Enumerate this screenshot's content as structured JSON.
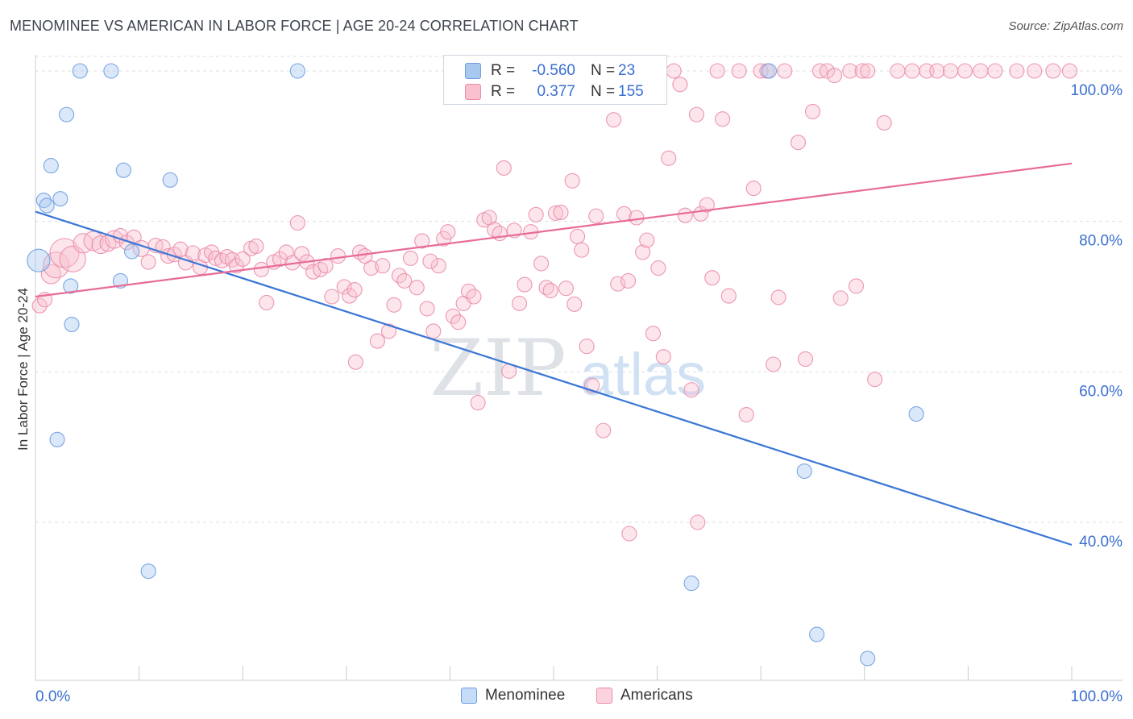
{
  "title": "MENOMINEE VS AMERICAN IN LABOR FORCE | AGE 20-24 CORRELATION CHART",
  "source": "Source: ZipAtlas.com",
  "watermark": {
    "zip": "ZIP",
    "atlas": "atlas"
  },
  "legend_stats": {
    "rows": [
      {
        "r_label": "R =",
        "r_value": "-0.560",
        "n_label": "N =",
        "n_value": "23",
        "color": "#a9c8f0",
        "stroke": "#6b9de0"
      },
      {
        "r_label": "R =",
        "r_value": "0.377",
        "n_label": "N =",
        "n_value": "155",
        "color": "#f9c0d0",
        "stroke": "#ea8cab"
      }
    ]
  },
  "legend_bottom": [
    {
      "label": "Menominee",
      "color": "#c5dbf7",
      "stroke": "#6b9de0"
    },
    {
      "label": "Americans",
      "color": "#fbd3df",
      "stroke": "#ea8cab"
    }
  ],
  "chart_data": {
    "type": "scatter",
    "title": "MENOMINEE VS AMERICAN IN LABOR FORCE | AGE 20-24 CORRELATION CHART",
    "ylabel": "In Labor Force | Age 20-24",
    "xlabel": "",
    "xlim": [
      0,
      100
    ],
    "ylim": [
      19,
      103
    ],
    "x_tick_labels": {
      "left": "0.0%",
      "right": "100.0%"
    },
    "y_ticks": [
      {
        "value": 100,
        "label": "100.0%"
      },
      {
        "value": 80,
        "label": "80.0%"
      },
      {
        "value": 60,
        "label": "60.0%"
      },
      {
        "value": 40,
        "label": "40.0%"
      }
    ],
    "grid": "horizontal dashed",
    "series": [
      {
        "name": "Menominee",
        "color": "#a9c8f0",
        "stroke": "#6b9de0",
        "trend": {
          "x": [
            0,
            100
          ],
          "y": [
            81.3,
            37.0
          ],
          "color": "#3a76d6"
        },
        "points": [
          [
            0.3,
            74.8,
            14
          ],
          [
            0.8,
            82.8,
            9
          ],
          [
            1.1,
            82.1,
            9
          ],
          [
            1.5,
            87.4,
            9
          ],
          [
            2.1,
            51.0,
            9
          ],
          [
            2.4,
            83.0,
            9
          ],
          [
            3.0,
            94.2,
            9
          ],
          [
            3.4,
            71.4,
            9
          ],
          [
            3.5,
            66.3,
            9
          ],
          [
            4.3,
            100.0,
            9
          ],
          [
            7.3,
            100.0,
            9
          ],
          [
            8.2,
            72.1,
            9
          ],
          [
            8.5,
            86.8,
            9
          ],
          [
            9.3,
            76.0,
            9
          ],
          [
            10.9,
            33.5,
            9
          ],
          [
            13.0,
            85.5,
            9
          ],
          [
            25.3,
            100.0,
            9
          ],
          [
            70.8,
            100.0,
            9
          ],
          [
            63.3,
            31.9,
            9
          ],
          [
            74.2,
            46.8,
            9
          ],
          [
            85.0,
            54.4,
            9
          ],
          [
            75.4,
            25.1,
            9
          ],
          [
            80.3,
            21.9,
            9
          ]
        ]
      },
      {
        "name": "Americans",
        "color": "#f9c0d0",
        "stroke": "#ea8cab",
        "trend": {
          "x": [
            0,
            100
          ],
          "y": [
            70.0,
            87.7
          ],
          "color": "#e86b98"
        },
        "points": [
          [
            0.4,
            68.8,
            9
          ],
          [
            0.9,
            69.6,
            9
          ],
          [
            1.5,
            73.0,
            12
          ],
          [
            2.0,
            74.2,
            16
          ],
          [
            2.8,
            75.8,
            18
          ],
          [
            3.6,
            75.0,
            16
          ],
          [
            4.6,
            77.1,
            12
          ],
          [
            5.6,
            77.4,
            12
          ],
          [
            6.3,
            76.9,
            11
          ],
          [
            7.0,
            77.1,
            10
          ],
          [
            7.6,
            77.6,
            11
          ],
          [
            8.2,
            78.1,
            9
          ],
          [
            8.8,
            77.2,
            9
          ],
          [
            9.5,
            77.9,
            9
          ],
          [
            10.2,
            76.4,
            10
          ],
          [
            10.9,
            74.6,
            9
          ],
          [
            11.6,
            76.8,
            9
          ],
          [
            12.3,
            76.6,
            9
          ],
          [
            12.8,
            75.4,
            9
          ],
          [
            13.4,
            75.6,
            9
          ],
          [
            14.0,
            76.3,
            9
          ],
          [
            14.5,
            74.5,
            9
          ],
          [
            15.2,
            75.8,
            9
          ],
          [
            15.9,
            73.9,
            9
          ],
          [
            16.4,
            75.5,
            9
          ],
          [
            17.0,
            75.9,
            9
          ],
          [
            17.4,
            75.1,
            9
          ],
          [
            18.0,
            74.8,
            9
          ],
          [
            18.5,
            75.3,
            9
          ],
          [
            19.0,
            74.9,
            9
          ],
          [
            19.4,
            74.1,
            9
          ],
          [
            20.0,
            75.0,
            9
          ],
          [
            20.8,
            76.4,
            9
          ],
          [
            21.3,
            76.7,
            9
          ],
          [
            21.8,
            73.6,
            9
          ],
          [
            22.3,
            69.2,
            9
          ],
          [
            23.0,
            74.6,
            9
          ],
          [
            23.6,
            75.0,
            9
          ],
          [
            24.2,
            75.9,
            9
          ],
          [
            24.8,
            74.5,
            9
          ],
          [
            25.3,
            79.8,
            9
          ],
          [
            25.7,
            75.7,
            9
          ],
          [
            26.2,
            74.6,
            9
          ],
          [
            26.8,
            73.3,
            9
          ],
          [
            27.5,
            73.6,
            9
          ],
          [
            28.0,
            74.1,
            9
          ],
          [
            28.6,
            70.0,
            9
          ],
          [
            29.2,
            75.4,
            9
          ],
          [
            29.8,
            71.3,
            9
          ],
          [
            30.3,
            70.1,
            9
          ],
          [
            30.8,
            70.9,
            9
          ],
          [
            31.3,
            75.9,
            9
          ],
          [
            31.8,
            75.4,
            9
          ],
          [
            32.4,
            73.8,
            9
          ],
          [
            33.0,
            64.1,
            9
          ],
          [
            33.5,
            74.1,
            9
          ],
          [
            34.1,
            65.4,
            9
          ],
          [
            34.6,
            68.9,
            9
          ],
          [
            35.1,
            72.8,
            9
          ],
          [
            35.6,
            72.1,
            9
          ],
          [
            36.2,
            75.1,
            9
          ],
          [
            36.8,
            71.2,
            9
          ],
          [
            37.3,
            77.4,
            9
          ],
          [
            37.8,
            68.4,
            9
          ],
          [
            38.4,
            65.4,
            9
          ],
          [
            38.9,
            74.1,
            9
          ],
          [
            39.4,
            77.7,
            9
          ],
          [
            39.8,
            78.6,
            9
          ],
          [
            40.3,
            67.4,
            9
          ],
          [
            40.8,
            66.6,
            9
          ],
          [
            41.3,
            69.1,
            9
          ],
          [
            41.8,
            70.7,
            9
          ],
          [
            42.3,
            70.0,
            9
          ],
          [
            42.7,
            55.9,
            9
          ],
          [
            43.3,
            80.2,
            9
          ],
          [
            43.8,
            80.5,
            9
          ],
          [
            44.3,
            78.9,
            9
          ],
          [
            44.8,
            78.4,
            9
          ],
          [
            45.2,
            87.1,
            9
          ],
          [
            45.7,
            60.1,
            9
          ],
          [
            46.2,
            78.8,
            9
          ],
          [
            46.7,
            69.1,
            9
          ],
          [
            47.2,
            71.6,
            9
          ],
          [
            47.8,
            78.6,
            9
          ],
          [
            48.3,
            80.9,
            9
          ],
          [
            48.8,
            74.4,
            9
          ],
          [
            49.3,
            71.2,
            9
          ],
          [
            49.7,
            70.8,
            9
          ],
          [
            50.2,
            81.1,
            9
          ],
          [
            50.7,
            81.2,
            9
          ],
          [
            51.2,
            71.1,
            9
          ],
          [
            51.8,
            85.4,
            9
          ],
          [
            52.3,
            78.0,
            9
          ],
          [
            52.7,
            76.2,
            9
          ],
          [
            53.2,
            63.4,
            9
          ],
          [
            53.7,
            58.2,
            9
          ],
          [
            54.1,
            80.7,
            9
          ],
          [
            54.8,
            52.2,
            9
          ],
          [
            55.3,
            100.0,
            9
          ],
          [
            55.8,
            93.5,
            9
          ],
          [
            56.2,
            71.7,
            9
          ],
          [
            56.8,
            81.0,
            9
          ],
          [
            57.3,
            38.5,
            9
          ],
          [
            58.0,
            80.5,
            9
          ],
          [
            58.6,
            75.9,
            9
          ],
          [
            59.0,
            77.5,
            9
          ],
          [
            59.6,
            65.1,
            9
          ],
          [
            60.1,
            73.8,
            9
          ],
          [
            60.6,
            62.0,
            9
          ],
          [
            61.1,
            88.4,
            9
          ],
          [
            61.6,
            100.0,
            9
          ],
          [
            62.2,
            98.2,
            9
          ],
          [
            62.7,
            80.8,
            9
          ],
          [
            63.3,
            57.6,
            9
          ],
          [
            63.8,
            94.2,
            9
          ],
          [
            64.2,
            81.0,
            9
          ],
          [
            64.8,
            82.2,
            9
          ],
          [
            65.3,
            72.5,
            9
          ],
          [
            65.8,
            100.0,
            9
          ],
          [
            66.3,
            93.6,
            9
          ],
          [
            66.9,
            70.1,
            9
          ],
          [
            67.9,
            100.0,
            9
          ],
          [
            68.6,
            54.3,
            9
          ],
          [
            69.3,
            84.4,
            9
          ],
          [
            70.0,
            100.0,
            9
          ],
          [
            70.6,
            100.0,
            9
          ],
          [
            71.2,
            61.0,
            9
          ],
          [
            71.7,
            69.9,
            9
          ],
          [
            72.3,
            100.0,
            9
          ],
          [
            73.6,
            90.5,
            9
          ],
          [
            74.3,
            61.7,
            9
          ],
          [
            75.0,
            94.6,
            9
          ],
          [
            75.7,
            100.0,
            9
          ],
          [
            76.4,
            100.0,
            9
          ],
          [
            77.1,
            99.4,
            9
          ],
          [
            77.7,
            69.8,
            9
          ],
          [
            78.6,
            100.0,
            9
          ],
          [
            79.2,
            71.4,
            9
          ],
          [
            79.8,
            100.0,
            9
          ],
          [
            80.3,
            100.0,
            9
          ],
          [
            81.0,
            59.0,
            9
          ],
          [
            81.9,
            93.1,
            9
          ],
          [
            83.2,
            100.0,
            9
          ],
          [
            84.6,
            100.0,
            9
          ],
          [
            86.0,
            100.0,
            9
          ],
          [
            87.0,
            100.0,
            9
          ],
          [
            88.3,
            100.0,
            9
          ],
          [
            89.7,
            100.0,
            9
          ],
          [
            91.2,
            100.0,
            9
          ],
          [
            92.6,
            100.0,
            9
          ],
          [
            94.7,
            100.0,
            9
          ],
          [
            96.4,
            100.0,
            9
          ],
          [
            98.2,
            100.0,
            9
          ],
          [
            99.8,
            100.0,
            9
          ],
          [
            50.4,
            100.0,
            9
          ],
          [
            57.2,
            72.1,
            9
          ],
          [
            38.1,
            74.7,
            9
          ],
          [
            52.0,
            69.0,
            9
          ],
          [
            30.9,
            61.3,
            9
          ],
          [
            63.9,
            40.0,
            9
          ]
        ]
      }
    ]
  }
}
